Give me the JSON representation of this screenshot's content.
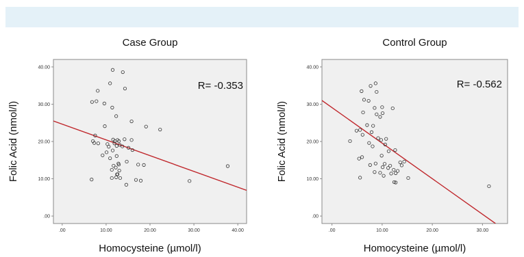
{
  "chart_data": [
    {
      "type": "scatter",
      "title": "Case Group",
      "xlabel": "Homocysteine (µmol/l)",
      "ylabel": "Folic Acid (nmol/l)",
      "annotation": "R= -0.353",
      "xlim": [
        -2,
        42
      ],
      "ylim": [
        -2,
        42
      ],
      "x_ticks": [
        0,
        10,
        20,
        30,
        40
      ],
      "x_tick_labels": [
        ".00",
        "10.00",
        "20.00",
        "30.00",
        "40.00"
      ],
      "y_ticks": [
        0,
        10,
        20,
        30,
        40
      ],
      "y_tick_labels": [
        ".00",
        "10.00",
        "20.00",
        "30.00",
        "40.00"
      ],
      "grid": false,
      "fit_line": {
        "x": [
          -2,
          42
        ],
        "y": [
          25.5,
          6.9
        ],
        "color": "#c0282d"
      },
      "points": [
        [
          11.5,
          39.2
        ],
        [
          13.8,
          38.6
        ],
        [
          10.9,
          35.6
        ],
        [
          14.3,
          34.2
        ],
        [
          8.1,
          33.6
        ],
        [
          7.8,
          30.8
        ],
        [
          9.6,
          30.2
        ],
        [
          6.8,
          30.6
        ],
        [
          11.4,
          29.1
        ],
        [
          9.7,
          24.1
        ],
        [
          12.3,
          26.8
        ],
        [
          15.8,
          25.4
        ],
        [
          19.1,
          24.0
        ],
        [
          22.3,
          23.2
        ],
        [
          7.5,
          21.6
        ],
        [
          12.6,
          20.4
        ],
        [
          12.9,
          20.1
        ],
        [
          11.6,
          20.5
        ],
        [
          12.0,
          20.1
        ],
        [
          15.8,
          20.4
        ],
        [
          14.2,
          20.6
        ],
        [
          7.0,
          20.1
        ],
        [
          7.3,
          19.6
        ],
        [
          8.2,
          19.5
        ],
        [
          10.3,
          19.3
        ],
        [
          11.9,
          19.5
        ],
        [
          13.1,
          19.1
        ],
        [
          12.4,
          18.8
        ],
        [
          10.6,
          18.6
        ],
        [
          13.7,
          18.7
        ],
        [
          15.1,
          18.3
        ],
        [
          16.0,
          17.7
        ],
        [
          11.5,
          17.6
        ],
        [
          10.1,
          17.1
        ],
        [
          9.2,
          16.3
        ],
        [
          12.4,
          16.1
        ],
        [
          14.7,
          14.6
        ],
        [
          10.9,
          15.5
        ],
        [
          12.8,
          14.1
        ],
        [
          12.9,
          13.8
        ],
        [
          11.7,
          13.5
        ],
        [
          12.2,
          13.0
        ],
        [
          13.0,
          12.2
        ],
        [
          17.3,
          13.8
        ],
        [
          18.6,
          13.7
        ],
        [
          11.3,
          12.4
        ],
        [
          12.6,
          11.2
        ],
        [
          12.5,
          11.2
        ],
        [
          12.3,
          10.4
        ],
        [
          11.3,
          10.2
        ],
        [
          13.2,
          10.2
        ],
        [
          16.8,
          9.7
        ],
        [
          17.9,
          9.5
        ],
        [
          6.7,
          9.8
        ],
        [
          14.6,
          8.4
        ],
        [
          29.0,
          9.4
        ],
        [
          37.7,
          13.4
        ]
      ]
    },
    {
      "type": "scatter",
      "title": "Control Group",
      "xlabel": "Homocysteine (µmol/l)",
      "ylabel": "Folic Acid (nmol/l)",
      "annotation": "R= -0.562",
      "xlim": [
        -2,
        35
      ],
      "ylim": [
        -2,
        42
      ],
      "x_ticks": [
        0,
        10,
        20,
        30
      ],
      "x_tick_labels": [
        ".00",
        "10.00",
        "20.00",
        "30.00"
      ],
      "y_ticks": [
        0,
        10,
        20,
        30,
        40
      ],
      "y_tick_labels": [
        ".00",
        "10.00",
        "20.00",
        "30.00",
        "40.00"
      ],
      "grid": false,
      "fit_line": {
        "x": [
          -2,
          32.6
        ],
        "y": [
          31.0,
          -2.0
        ],
        "color": "#c0282d"
      },
      "points": [
        [
          8.7,
          35.6
        ],
        [
          7.7,
          34.9
        ],
        [
          8.9,
          33.3
        ],
        [
          5.9,
          33.5
        ],
        [
          6.4,
          31.2
        ],
        [
          7.3,
          30.9
        ],
        [
          10.0,
          29.2
        ],
        [
          8.5,
          29.0
        ],
        [
          12.1,
          28.9
        ],
        [
          6.2,
          27.8
        ],
        [
          8.9,
          27.3
        ],
        [
          10.1,
          27.6
        ],
        [
          9.6,
          26.6
        ],
        [
          8.2,
          24.2
        ],
        [
          7.0,
          24.4
        ],
        [
          5.6,
          23.1
        ],
        [
          4.9,
          22.9
        ],
        [
          7.9,
          22.5
        ],
        [
          6.1,
          21.8
        ],
        [
          10.8,
          20.7
        ],
        [
          9.2,
          20.9
        ],
        [
          9.8,
          20.4
        ],
        [
          3.6,
          20.1
        ],
        [
          7.4,
          19.6
        ],
        [
          10.6,
          19.2
        ],
        [
          8.1,
          18.7
        ],
        [
          12.6,
          17.7
        ],
        [
          11.3,
          17.4
        ],
        [
          9.9,
          16.2
        ],
        [
          6.0,
          15.8
        ],
        [
          5.4,
          15.4
        ],
        [
          7.6,
          13.7
        ],
        [
          8.7,
          14.1
        ],
        [
          10.5,
          14.0
        ],
        [
          11.6,
          13.5
        ],
        [
          10.1,
          13.1
        ],
        [
          11.2,
          12.9
        ],
        [
          12.3,
          12.4
        ],
        [
          13.6,
          14.4
        ],
        [
          14.4,
          14.6
        ],
        [
          13.9,
          13.6
        ],
        [
          13.1,
          12.1
        ],
        [
          12.7,
          11.5
        ],
        [
          11.8,
          11.4
        ],
        [
          10.3,
          10.8
        ],
        [
          8.5,
          11.8
        ],
        [
          9.6,
          11.6
        ],
        [
          5.6,
          10.3
        ],
        [
          15.2,
          10.2
        ],
        [
          12.4,
          9.1
        ],
        [
          12.7,
          9.0
        ],
        [
          31.3,
          8.0
        ]
      ]
    }
  ]
}
